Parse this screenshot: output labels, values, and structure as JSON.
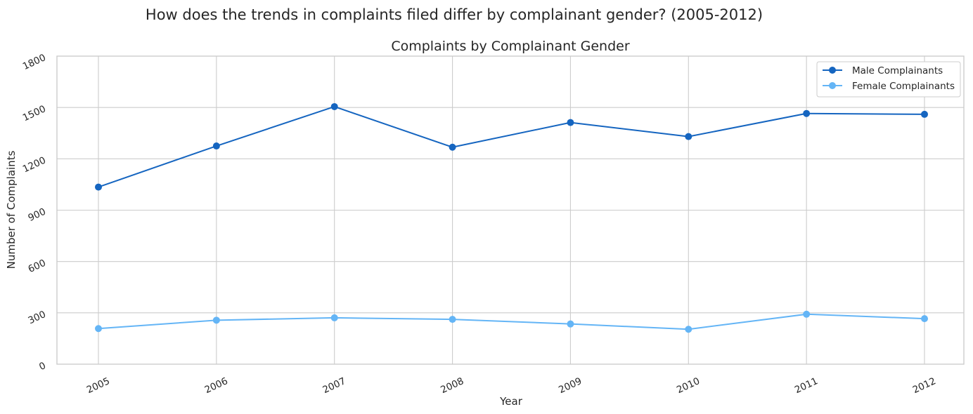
{
  "chart_data": {
    "type": "line",
    "suptitle": "How does the trends in complaints filed differ by complainant gender? (2005-2012)",
    "title": "Complaints by Complainant Gender",
    "xlabel": "Year",
    "ylabel": "Number of Complaints",
    "x": [
      "2005",
      "2006",
      "2007",
      "2008",
      "2009",
      "2010",
      "2011",
      "2012"
    ],
    "y_ticks": [
      "0",
      "300",
      "600",
      "900",
      "1200",
      "1500",
      "1800"
    ],
    "ylim": [
      0,
      1800
    ],
    "grid": true,
    "legend_position": "top-right",
    "series": [
      {
        "name": "Male Complainants",
        "color": "#1565c0",
        "values": [
          1035,
          1275,
          1505,
          1268,
          1412,
          1330,
          1465,
          1460
        ]
      },
      {
        "name": "Female Complainants",
        "color": "#64b5f6",
        "values": [
          208,
          257,
          271,
          262,
          235,
          204,
          292,
          266
        ]
      }
    ]
  }
}
